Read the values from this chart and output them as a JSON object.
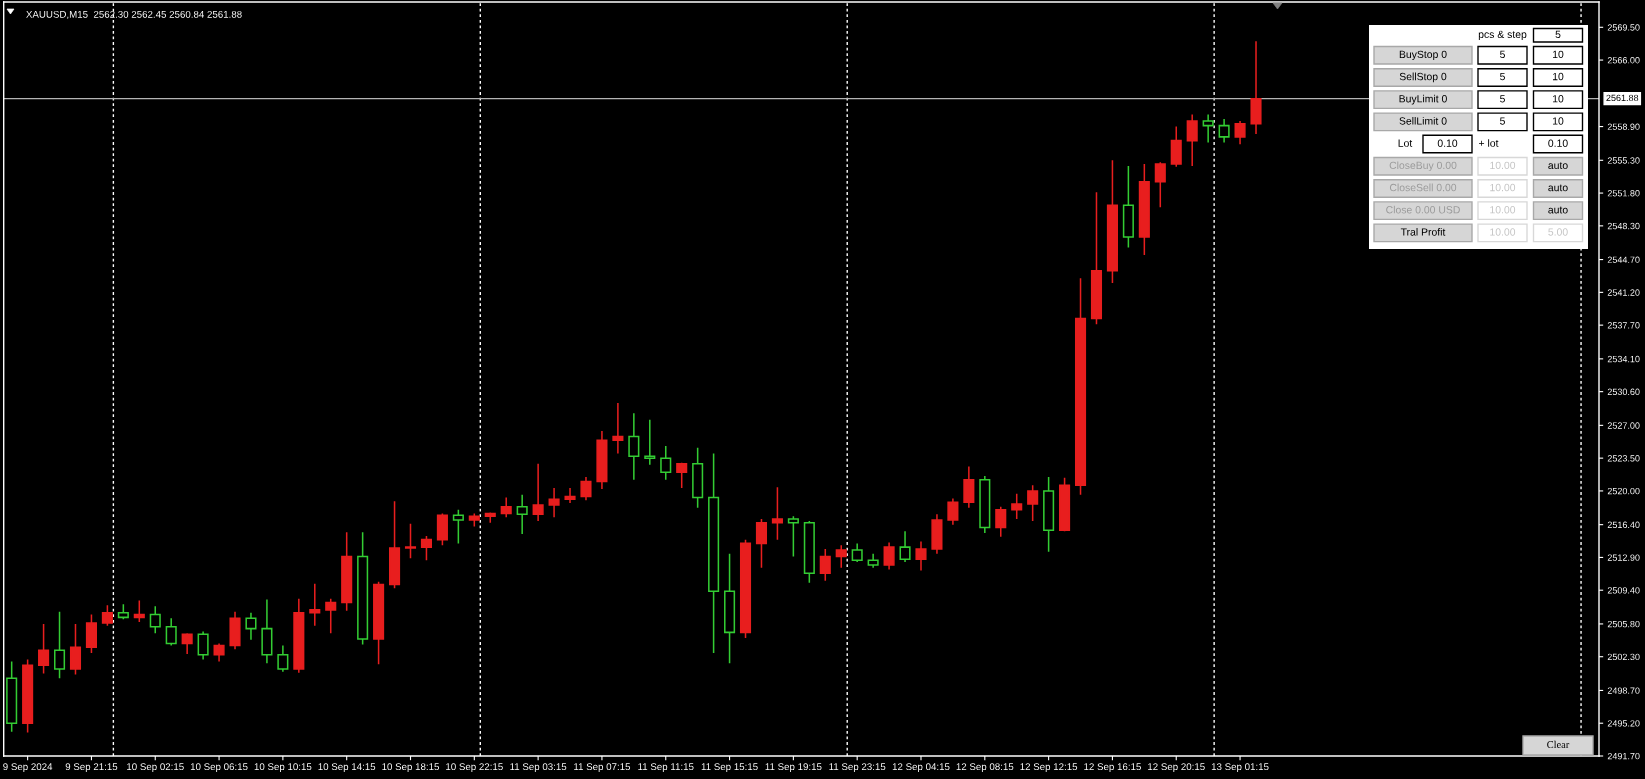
{
  "chart_data": {
    "type": "candlestick",
    "title": "XAUUSD,M15  2562.30 2562.45 2560.84 2561.88",
    "categories": [
      null,
      "9 Sep 2024",
      null,
      null,
      null,
      "9 Sep 21:15",
      null,
      null,
      null,
      "10 Sep 02:15",
      null,
      null,
      null,
      "10 Sep 06:15",
      null,
      null,
      null,
      "10 Sep 10:15",
      null,
      null,
      null,
      "10 Sep 14:15",
      null,
      null,
      null,
      "10 Sep 18:15",
      null,
      null,
      null,
      "10 Sep 22:15",
      null,
      null,
      null,
      "11 Sep 03:15",
      null,
      null,
      null,
      "11 Sep 07:15",
      null,
      null,
      null,
      "11 Sep 11:15",
      null,
      null,
      null,
      "11 Sep 15:15",
      null,
      null,
      null,
      "11 Sep 19:15",
      null,
      null,
      null,
      "11 Sep 23:15",
      null,
      null,
      null,
      "12 Sep 04:15",
      null,
      null,
      null,
      "12 Sep 08:15",
      null,
      null,
      null,
      "12 Sep 12:15",
      null,
      null,
      null,
      "12 Sep 16:15",
      null,
      null,
      null,
      "12 Sep 20:15",
      null,
      null,
      null,
      "13 Sep 01:15",
      null,
      null,
      null,
      null,
      null,
      null,
      null,
      null,
      null,
      null,
      null,
      null,
      null,
      null,
      null,
      null,
      null,
      null,
      null,
      null,
      null,
      null
    ],
    "ohlc": [
      [
        2500.0,
        2501.8,
        2494.3,
        2495.2
      ],
      [
        2495.2,
        2502.0,
        2494.2,
        2501.4
      ],
      [
        2501.4,
        2505.8,
        2500.5,
        2503.0
      ],
      [
        2503.0,
        2507.1,
        2500.0,
        2501.0
      ],
      [
        2501.0,
        2505.8,
        2500.4,
        2503.3
      ],
      [
        2503.3,
        2506.8,
        2502.7,
        2505.9
      ],
      [
        2505.9,
        2507.8,
        2505.6,
        2507.0
      ],
      [
        2507.0,
        2507.9,
        2506.3,
        2506.5
      ],
      [
        2506.5,
        2508.3,
        2506.0,
        2506.8
      ],
      [
        2506.8,
        2507.7,
        2504.8,
        2505.5
      ],
      [
        2505.5,
        2506.4,
        2503.5,
        2503.7
      ],
      [
        2503.7,
        2504.8,
        2502.6,
        2504.7
      ],
      [
        2504.7,
        2505.0,
        2502.0,
        2502.5
      ],
      [
        2502.5,
        2503.7,
        2501.8,
        2503.5
      ],
      [
        2503.5,
        2507.1,
        2503.1,
        2506.4
      ],
      [
        2506.4,
        2507.0,
        2504.1,
        2505.3
      ],
      [
        2505.3,
        2508.4,
        2501.6,
        2502.5
      ],
      [
        2502.5,
        2503.5,
        2500.7,
        2501.0
      ],
      [
        2501.0,
        2508.5,
        2500.6,
        2507.0
      ],
      [
        2507.0,
        2510.1,
        2505.6,
        2507.3
      ],
      [
        2507.3,
        2508.5,
        2504.8,
        2508.1
      ],
      [
        2508.1,
        2515.6,
        2507.2,
        2513.0
      ],
      [
        2513.0,
        2515.6,
        2503.6,
        2504.2
      ],
      [
        2504.2,
        2510.3,
        2501.5,
        2510.0
      ],
      [
        2510.0,
        2518.9,
        2509.6,
        2513.9
      ],
      [
        2513.9,
        2516.5,
        2512.8,
        2514.0
      ],
      [
        2514.0,
        2515.2,
        2512.6,
        2514.8
      ],
      [
        2514.8,
        2517.6,
        2514.2,
        2517.4
      ],
      [
        2517.4,
        2518.0,
        2514.4,
        2516.9
      ],
      [
        2516.9,
        2517.6,
        2516.2,
        2517.3
      ],
      [
        2517.3,
        2517.7,
        2516.6,
        2517.6
      ],
      [
        2517.6,
        2519.3,
        2517.2,
        2518.3
      ],
      [
        2518.3,
        2519.6,
        2515.4,
        2517.5
      ],
      [
        2517.5,
        2522.9,
        2516.8,
        2518.5
      ],
      [
        2518.5,
        2520.3,
        2517.2,
        2519.1
      ],
      [
        2519.1,
        2520.3,
        2518.7,
        2519.4
      ],
      [
        2519.4,
        2521.5,
        2519.0,
        2521.0
      ],
      [
        2521.0,
        2526.4,
        2520.2,
        2525.4
      ],
      [
        2525.4,
        2529.4,
        2524.0,
        2525.8
      ],
      [
        2525.8,
        2528.3,
        2521.2,
        2523.7
      ],
      [
        2523.7,
        2527.6,
        2522.8,
        2523.5
      ],
      [
        2523.5,
        2524.8,
        2521.2,
        2522.0
      ],
      [
        2522.0,
        2523.0,
        2520.3,
        2522.9
      ],
      [
        2522.9,
        2524.6,
        2518.2,
        2519.3
      ],
      [
        2519.3,
        2524.0,
        2502.7,
        2509.3
      ],
      [
        2509.3,
        2513.3,
        2501.6,
        2504.9
      ],
      [
        2504.9,
        2514.8,
        2504.3,
        2514.4
      ],
      [
        2514.4,
        2517.0,
        2511.8,
        2516.6
      ],
      [
        2516.6,
        2520.4,
        2514.8,
        2517.0
      ],
      [
        2517.0,
        2517.3,
        2513.0,
        2516.6
      ],
      [
        2516.6,
        2516.8,
        2510.2,
        2511.2
      ],
      [
        2511.2,
        2513.8,
        2510.4,
        2513.0
      ],
      [
        2513.0,
        2514.2,
        2511.8,
        2513.7
      ],
      [
        2513.7,
        2514.4,
        2512.4,
        2512.6
      ],
      [
        2512.6,
        2513.3,
        2511.8,
        2512.1
      ],
      [
        2512.1,
        2514.5,
        2511.6,
        2514.0
      ],
      [
        2514.0,
        2515.7,
        2512.4,
        2512.7
      ],
      [
        2512.7,
        2514.6,
        2511.5,
        2513.8
      ],
      [
        2513.8,
        2517.5,
        2513.3,
        2516.9
      ],
      [
        2516.9,
        2519.2,
        2516.4,
        2518.8
      ],
      [
        2518.8,
        2522.6,
        2518.2,
        2521.2
      ],
      [
        2521.2,
        2521.6,
        2515.5,
        2516.1
      ],
      [
        2516.1,
        2518.3,
        2515.1,
        2518.0
      ],
      [
        2518.0,
        2519.7,
        2517.0,
        2518.6
      ],
      [
        2518.6,
        2520.6,
        2516.8,
        2520.0
      ],
      [
        2520.0,
        2521.5,
        2513.5,
        2515.8
      ],
      [
        2515.8,
        2521.4,
        2515.7,
        2520.6
      ],
      [
        2520.6,
        2542.7,
        2519.6,
        2538.4
      ],
      [
        2538.4,
        2551.9,
        2537.8,
        2543.5
      ],
      [
        2543.5,
        2555.3,
        2542.2,
        2550.5
      ],
      [
        2550.5,
        2554.7,
        2546.0,
        2547.1
      ],
      [
        2547.1,
        2554.9,
        2545.2,
        2553.0
      ],
      [
        2553.0,
        2555.1,
        2550.3,
        2554.9
      ],
      [
        2554.9,
        2558.9,
        2554.6,
        2557.4
      ],
      [
        2557.4,
        2560.2,
        2554.7,
        2559.5
      ],
      [
        2559.5,
        2560.2,
        2557.2,
        2559.0
      ],
      [
        2559.0,
        2559.7,
        2557.2,
        2557.8
      ],
      [
        2557.8,
        2559.5,
        2557.0,
        2559.2
      ],
      [
        2559.2,
        2568.0,
        2558.1,
        2561.88
      ],
      null,
      null,
      null,
      null,
      null,
      null,
      null,
      null,
      null,
      null,
      null,
      null,
      null,
      null,
      null,
      null,
      null,
      null,
      null,
      null,
      null
    ],
    "colors": [
      "#33cc33",
      "#e81e1e",
      "#e81e1e",
      "#33cc33",
      "#e81e1e",
      "#e81e1e",
      "#e81e1e",
      "#33cc33",
      "#e81e1e",
      "#33cc33",
      "#33cc33",
      "#e81e1e",
      "#33cc33",
      "#e81e1e",
      "#e81e1e",
      "#33cc33",
      "#33cc33",
      "#33cc33",
      "#e81e1e",
      "#e81e1e",
      "#e81e1e",
      "#e81e1e",
      "#33cc33",
      "#e81e1e",
      "#e81e1e",
      "#e81e1e",
      "#e81e1e",
      "#e81e1e",
      "#33cc33",
      "#e81e1e",
      "#e81e1e",
      "#e81e1e",
      "#33cc33",
      "#e81e1e",
      "#e81e1e",
      "#e81e1e",
      "#e81e1e",
      "#e81e1e",
      "#e81e1e",
      "#33cc33",
      "#33cc33",
      "#33cc33",
      "#e81e1e",
      "#33cc33",
      "#33cc33",
      "#33cc33",
      "#e81e1e",
      "#e81e1e",
      "#e81e1e",
      "#33cc33",
      "#33cc33",
      "#e81e1e",
      "#e81e1e",
      "#33cc33",
      "#33cc33",
      "#e81e1e",
      "#33cc33",
      "#e81e1e",
      "#e81e1e",
      "#e81e1e",
      "#e81e1e",
      "#33cc33",
      "#e81e1e",
      "#e81e1e",
      "#e81e1e",
      "#33cc33",
      "#e81e1e",
      "#e81e1e",
      "#e81e1e",
      "#e81e1e",
      "#33cc33",
      "#e81e1e",
      "#e81e1e",
      "#e81e1e",
      "#e81e1e",
      "#33cc33",
      "#33cc33",
      "#e81e1e",
      "#e81e1e",
      null,
      null,
      null,
      null,
      null,
      null,
      null,
      null,
      null,
      null,
      null,
      null,
      null,
      null,
      null,
      null,
      null,
      null,
      null,
      null,
      null
    ],
    "ylim": [
      2491.7,
      2572.2
    ],
    "yticks": [
      {
        "value": 2491.7,
        "label": "2491.70"
      },
      {
        "value": 2495.2,
        "label": "2495.20"
      },
      {
        "value": 2498.7,
        "label": "2498.70"
      },
      {
        "value": 2502.3,
        "label": "2502.30"
      },
      {
        "value": 2505.8,
        "label": "2505.80"
      },
      {
        "value": 2509.4,
        "label": "2509.40"
      },
      {
        "value": 2512.9,
        "label": "2512.90"
      },
      {
        "value": 2516.4,
        "label": "2516.40"
      },
      {
        "value": 2520.0,
        "label": "2520.00"
      },
      {
        "value": 2523.5,
        "label": "2523.50"
      },
      {
        "value": 2527.0,
        "label": "2527.00"
      },
      {
        "value": 2530.6,
        "label": "2530.60"
      },
      {
        "value": 2534.1,
        "label": "2534.10"
      },
      {
        "value": 2537.7,
        "label": "2537.70"
      },
      {
        "value": 2541.2,
        "label": "2541.20"
      },
      {
        "value": 2544.7,
        "label": "2544.70"
      },
      {
        "value": 2548.3,
        "label": "2548.30"
      },
      {
        "value": 2551.8,
        "label": "2551.80"
      },
      {
        "value": 2555.3,
        "label": "2555.30"
      },
      {
        "value": 2558.9,
        "label": "2558.90"
      },
      {
        "value": 2566.0,
        "label": "2566.00"
      },
      {
        "value": 2569.5,
        "label": "2569.50"
      }
    ],
    "ref_lines": [
      {
        "axis": "y",
        "value": 2561.88,
        "label": "2561.88",
        "color": "#b4b4b4",
        "line_style": "solid"
      }
    ],
    "annotations": [
      "pcs & step",
      "5",
      "BuyStop 0",
      "5",
      "10",
      "SellStop 0",
      "5",
      "10",
      "BuyLimit 0",
      "5",
      "10",
      "SellLimit 0",
      "5",
      "10",
      "Lot",
      "0.10",
      "+ lot",
      "0.10",
      "CloseBuy 0.00",
      "10.00",
      "auto",
      "CloseSell 0.00",
      "10.00",
      "auto",
      "Close 0.00 USD",
      "10.00",
      "auto",
      "Tral Profit",
      "10.00",
      "5.00",
      "Clear"
    ]
  }
}
